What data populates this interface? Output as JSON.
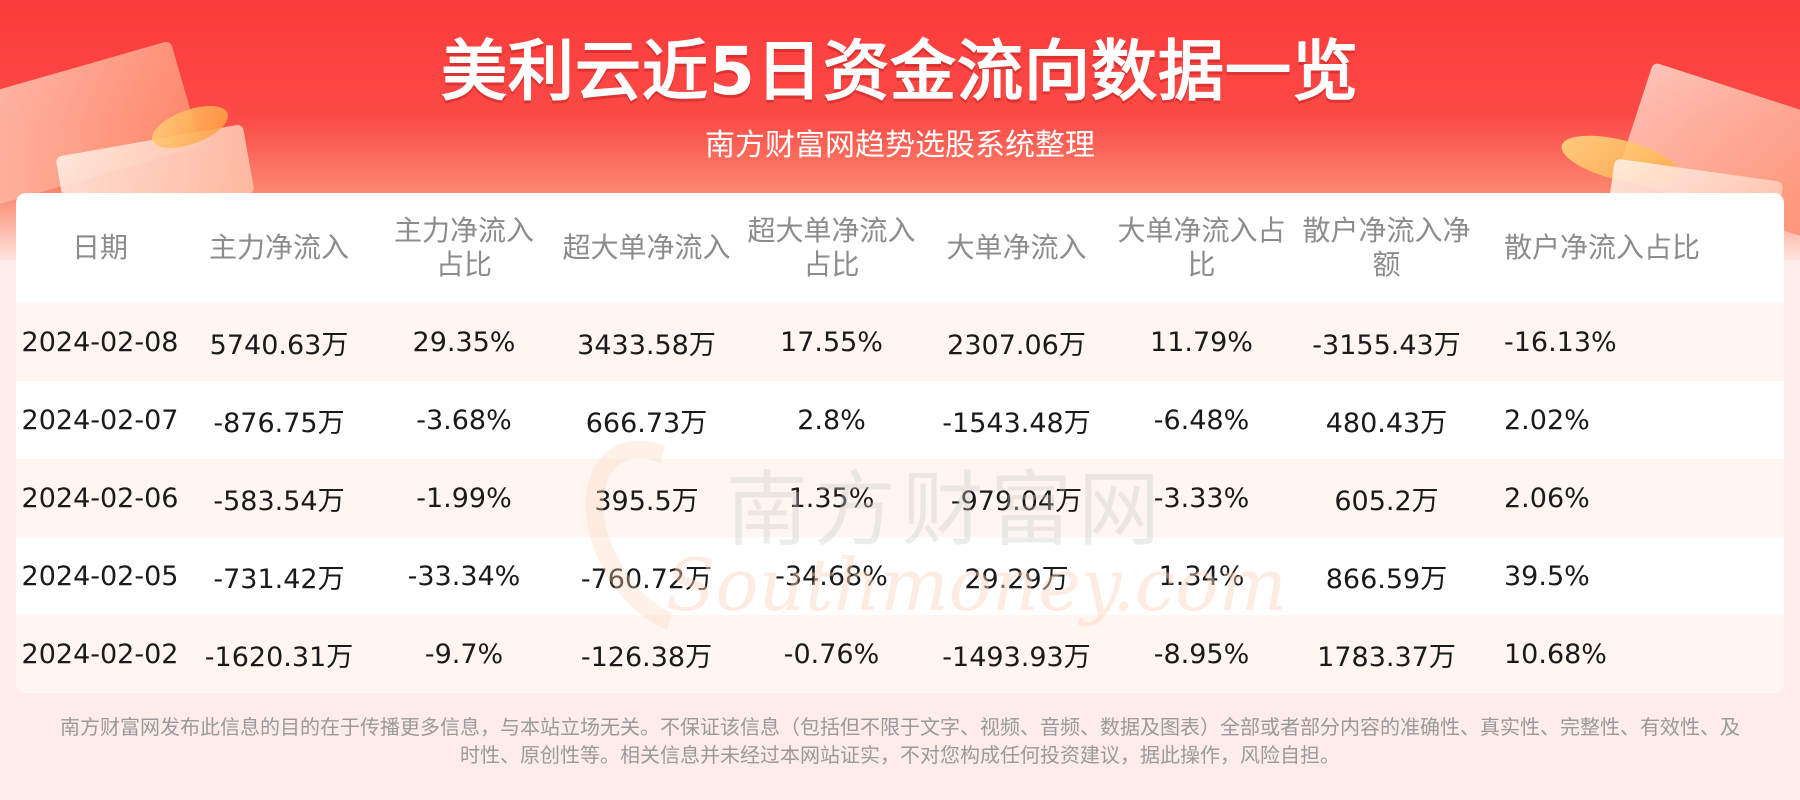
{
  "header": {
    "title": "美利云近5日资金流向数据一览",
    "subtitle": "南方财富网趋势选股系统整理"
  },
  "watermark": {
    "cn": "南方财富网",
    "en": "Southmoney.com"
  },
  "table": {
    "columns": [
      "日期",
      "主力净流入",
      "主力净流入占比",
      "超大单净流入",
      "超大单净流入占比",
      "大单净流入",
      "大单净流入占比",
      "散户净流入净额",
      "散户净流入占比"
    ],
    "rows": [
      [
        "2024-02-08",
        "5740.63万",
        "29.35%",
        "3433.58万",
        "17.55%",
        "2307.06万",
        "11.79%",
        "-3155.43万",
        "-16.13%"
      ],
      [
        "2024-02-07",
        "-876.75万",
        "-3.68%",
        "666.73万",
        "2.8%",
        "-1543.48万",
        "-6.48%",
        "480.43万",
        "2.02%"
      ],
      [
        "2024-02-06",
        "-583.54万",
        "-1.99%",
        "395.5万",
        "1.35%",
        "-979.04万",
        "-3.33%",
        "605.2万",
        "2.06%"
      ],
      [
        "2024-02-05",
        "-731.42万",
        "-33.34%",
        "-760.72万",
        "-34.68%",
        "29.29万",
        "1.34%",
        "866.59万",
        "39.5%"
      ],
      [
        "2024-02-02",
        "-1620.31万",
        "-9.7%",
        "-126.38万",
        "-0.76%",
        "-1493.93万",
        "-8.95%",
        "1783.37万",
        "10.68%"
      ]
    ]
  },
  "footer": {
    "disclaimer": "南方财富网发布此信息的目的在于传播更多信息，与本站立场无关。不保证该信息（包括但不限于文字、视频、音频、数据及图表）全部或者部分内容的准确性、真实性、完整性、有效性、及时性、原创性等。相关信息并未经过本网站证实，不对您构成任何投资建议，据此操作，风险自担。"
  },
  "colors": {
    "banner_red": "#fb3b3b",
    "row_stripe": "#fff6f1",
    "header_text": "#8c8c8c"
  }
}
